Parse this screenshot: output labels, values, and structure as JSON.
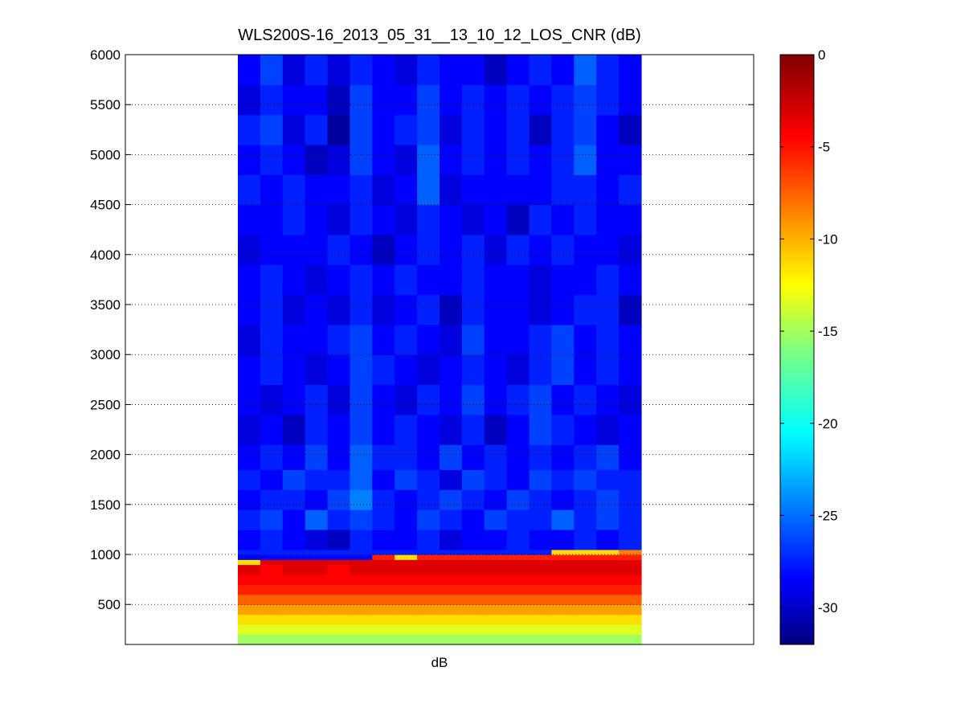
{
  "chart_data": {
    "type": "heatmap",
    "title": "WLS200S-16_2013_05_31__13_10_12_LOS_CNR (dB)",
    "xlabel": "dB",
    "ylabel": "",
    "ylim": [
      100,
      6000
    ],
    "yticks": [
      500,
      1000,
      1500,
      2000,
      2500,
      3000,
      3500,
      4000,
      4500,
      5000,
      5500,
      6000
    ],
    "grid": "y-dotted",
    "colormap": "jet",
    "colorbar": {
      "clim": [
        -32,
        0
      ],
      "ticks": [
        0,
        -5,
        -10,
        -15,
        -20,
        -25,
        -30
      ],
      "position": "right"
    },
    "columns": 18,
    "rows": [
      {
        "y": [
          100,
          200
        ],
        "values": [
          -15,
          -15,
          -15,
          -15,
          -15,
          -15,
          -15,
          -15,
          -15,
          -15,
          -15,
          -15,
          -15,
          -15,
          -15,
          -15,
          -15,
          -15
        ]
      },
      {
        "y": [
          200,
          300
        ],
        "values": [
          -13,
          -13,
          -13,
          -13,
          -13,
          -13,
          -13,
          -13,
          -13,
          -13,
          -13,
          -13,
          -13,
          -13,
          -13,
          -13,
          -13,
          -13
        ]
      },
      {
        "y": [
          300,
          400
        ],
        "values": [
          -11,
          -11,
          -11,
          -11,
          -11,
          -11,
          -11,
          -11,
          -11,
          -11,
          -11,
          -11,
          -11,
          -11,
          -11,
          -11,
          -11,
          -11
        ]
      },
      {
        "y": [
          400,
          500
        ],
        "values": [
          -9,
          -9,
          -9,
          -9,
          -9,
          -9,
          -9,
          -9,
          -9,
          -9,
          -9,
          -9,
          -9,
          -9,
          -9,
          -9,
          -9,
          -9
        ]
      },
      {
        "y": [
          500,
          600
        ],
        "values": [
          -7,
          -7,
          -7,
          -7,
          -7,
          -7,
          -7,
          -7,
          -7,
          -7,
          -7,
          -7,
          -7,
          -7,
          -7,
          -7,
          -7,
          -7
        ]
      },
      {
        "y": [
          600,
          700
        ],
        "values": [
          -5,
          -5,
          -5,
          -5,
          -5,
          -5,
          -5,
          -5,
          -5,
          -5,
          -5,
          -5,
          -5,
          -5,
          -5,
          -5,
          -5,
          -5
        ]
      },
      {
        "y": [
          700,
          800
        ],
        "values": [
          -4,
          -4,
          -4,
          -4,
          -4,
          -4,
          -4,
          -4,
          -4,
          -4,
          -4,
          -4,
          -4,
          -4,
          -4,
          -4,
          -4,
          -4
        ]
      },
      {
        "y": [
          800,
          900
        ],
        "values": [
          -3,
          -4,
          -3,
          -3,
          -4,
          -3,
          -3,
          -3,
          -3,
          -3,
          -3,
          -3,
          -3,
          -3,
          -3,
          -3,
          -3,
          -3
        ]
      },
      {
        "y": [
          900,
          950
        ],
        "values": [
          -11,
          -3,
          -3,
          -3,
          -3,
          -3,
          -3,
          -3,
          -3,
          -3,
          -3,
          -3,
          -3,
          -3,
          -3,
          -3,
          -3,
          -3
        ]
      },
      {
        "y": [
          950,
          1000
        ],
        "values": [
          -28,
          -28,
          -28,
          -28,
          -28,
          -28,
          -5,
          -11,
          -5,
          -5,
          -5,
          -5,
          -5,
          -5,
          -5,
          -5,
          -5,
          -5
        ]
      },
      {
        "y": [
          1000,
          1050
        ],
        "values": [
          -27,
          -27,
          -27,
          -27,
          -27,
          -27,
          -27,
          -27,
          -27,
          -27,
          -27,
          -27,
          -27,
          -27,
          -11,
          -11,
          -11,
          -8
        ]
      },
      {
        "y": [
          1050,
          1250
        ],
        "values": [
          -28,
          -27,
          -28,
          -29,
          -30,
          -27,
          -28,
          -28,
          -27,
          -29,
          -28,
          -28,
          -27,
          -28,
          -28,
          -27,
          -28,
          -27
        ]
      },
      {
        "y": [
          1250,
          1450
        ],
        "values": [
          -27,
          -26,
          -28,
          -25,
          -27,
          -26,
          -27,
          -28,
          -26,
          -27,
          -28,
          -26,
          -27,
          -27,
          -25,
          -27,
          -26,
          -27
        ]
      },
      {
        "y": [
          1450,
          1650
        ],
        "values": [
          -28,
          -27,
          -27,
          -28,
          -26,
          -24,
          -27,
          -28,
          -27,
          -26,
          -27,
          -28,
          -26,
          -27,
          -28,
          -27,
          -26,
          -27
        ]
      },
      {
        "y": [
          1650,
          1850
        ],
        "values": [
          -27,
          -28,
          -26,
          -27,
          -27,
          -25,
          -28,
          -26,
          -27,
          -29,
          -26,
          -27,
          -28,
          -26,
          -27,
          -26,
          -27,
          -27
        ]
      },
      {
        "y": [
          1850,
          2100
        ],
        "values": [
          -28,
          -27,
          -28,
          -26,
          -28,
          -25,
          -27,
          -27,
          -28,
          -26,
          -28,
          -27,
          -28,
          -27,
          -28,
          -27,
          -26,
          -28
        ]
      },
      {
        "y": [
          2100,
          2400
        ],
        "values": [
          -29,
          -28,
          -30,
          -27,
          -28,
          -26,
          -28,
          -27,
          -28,
          -29,
          -27,
          -30,
          -28,
          -26,
          -27,
          -28,
          -29,
          -28
        ]
      },
      {
        "y": [
          2400,
          2700
        ],
        "values": [
          -28,
          -29,
          -28,
          -27,
          -29,
          -26,
          -28,
          -29,
          -27,
          -28,
          -26,
          -28,
          -27,
          -26,
          -28,
          -27,
          -28,
          -29
        ]
      },
      {
        "y": [
          2700,
          3000
        ],
        "values": [
          -28,
          -27,
          -28,
          -29,
          -28,
          -26,
          -27,
          -28,
          -29,
          -28,
          -27,
          -28,
          -29,
          -27,
          -26,
          -28,
          -27,
          -28
        ]
      },
      {
        "y": [
          3000,
          3300
        ],
        "values": [
          -29,
          -27,
          -28,
          -28,
          -27,
          -26,
          -28,
          -27,
          -28,
          -29,
          -26,
          -28,
          -28,
          -27,
          -26,
          -28,
          -27,
          -28
        ]
      },
      {
        "y": [
          3300,
          3600
        ],
        "values": [
          -28,
          -27,
          -29,
          -28,
          -29,
          -27,
          -29,
          -28,
          -27,
          -30,
          -27,
          -28,
          -28,
          -29,
          -28,
          -27,
          -27,
          -30
        ]
      },
      {
        "y": [
          3600,
          3900
        ],
        "values": [
          -28,
          -27,
          -28,
          -29,
          -28,
          -27,
          -28,
          -27,
          -28,
          -28,
          -27,
          -28,
          -28,
          -29,
          -28,
          -28,
          -27,
          -28
        ]
      },
      {
        "y": [
          3900,
          4200
        ],
        "values": [
          -29,
          -28,
          -28,
          -28,
          -27,
          -28,
          -30,
          -28,
          -27,
          -28,
          -27,
          -29,
          -27,
          -28,
          -27,
          -28,
          -28,
          -29
        ]
      },
      {
        "y": [
          4200,
          4500
        ],
        "values": [
          -28,
          -28,
          -27,
          -28,
          -29,
          -27,
          -28,
          -29,
          -27,
          -28,
          -29,
          -28,
          -30,
          -27,
          -28,
          -27,
          -28,
          -28
        ]
      },
      {
        "y": [
          4500,
          4800
        ],
        "values": [
          -27,
          -28,
          -27,
          -28,
          -28,
          -27,
          -29,
          -28,
          -25,
          -29,
          -28,
          -28,
          -28,
          -28,
          -27,
          -27,
          -28,
          -27
        ]
      },
      {
        "y": [
          4800,
          5100
        ],
        "values": [
          -28,
          -27,
          -28,
          -30,
          -29,
          -26,
          -28,
          -29,
          -25,
          -28,
          -27,
          -28,
          -27,
          -28,
          -27,
          -25,
          -28,
          -28
        ]
      },
      {
        "y": [
          5100,
          5400
        ],
        "values": [
          -27,
          -26,
          -29,
          -27,
          -31,
          -26,
          -28,
          -27,
          -26,
          -29,
          -27,
          -28,
          -27,
          -30,
          -27,
          -26,
          -28,
          -30
        ]
      },
      {
        "y": [
          5400,
          5700
        ],
        "values": [
          -29,
          -27,
          -28,
          -28,
          -30,
          -26,
          -28,
          -28,
          -26,
          -28,
          -27,
          -28,
          -27,
          -28,
          -27,
          -26,
          -27,
          -28
        ]
      },
      {
        "y": [
          5700,
          6000
        ],
        "values": [
          -28,
          -26,
          -29,
          -27,
          -29,
          -27,
          -28,
          -29,
          -27,
          -28,
          -28,
          -30,
          -28,
          -27,
          -28,
          -25,
          -27,
          -28
        ]
      }
    ]
  }
}
